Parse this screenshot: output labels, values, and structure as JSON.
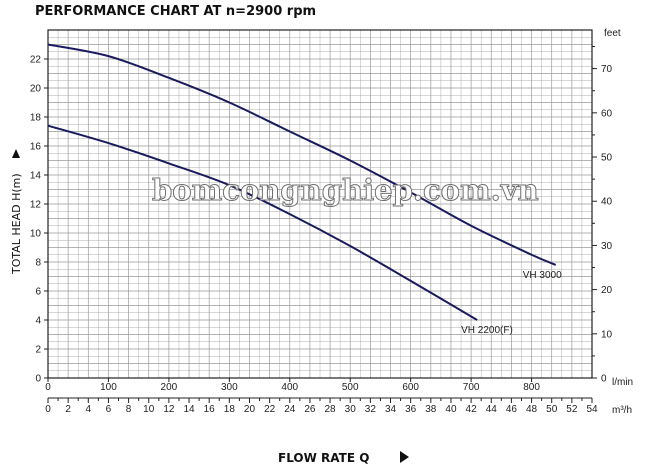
{
  "chart_data": {
    "type": "line",
    "title": "PERFORMANCE CHART AT n=2900 rpm",
    "xlabel": "FLOW RATE Q",
    "ylabel": "TOTAL HEAD H(m)",
    "x_unit_primary": "l/min",
    "x_unit_secondary": "m³/h",
    "y_unit_secondary": "feet",
    "xlim": [
      0,
      900
    ],
    "ylim": [
      0,
      24
    ],
    "x_ticks": [
      "0",
      "100",
      "200",
      "300",
      "400",
      "500",
      "600",
      "700",
      "800"
    ],
    "x2_ticks": [
      "0",
      "2",
      "4",
      "6",
      "8",
      "10",
      "12",
      "14",
      "16",
      "18",
      "20",
      "22",
      "24",
      "26",
      "28",
      "30",
      "32",
      "34",
      "36",
      "38",
      "40",
      "42",
      "44",
      "46",
      "48",
      "50",
      "52",
      "54"
    ],
    "y_ticks": [
      "0",
      "2",
      "4",
      "6",
      "8",
      "10",
      "12",
      "14",
      "16",
      "18",
      "20",
      "22"
    ],
    "y2_ticks": [
      "0",
      "10",
      "20",
      "30",
      "40",
      "50",
      "60",
      "70"
    ],
    "y2_unit_label": "feet",
    "grid": true,
    "series": [
      {
        "name": "VH 3000",
        "x": [
          0,
          100,
          200,
          300,
          400,
          500,
          600,
          700,
          800,
          840
        ],
        "y": [
          23.0,
          22.2,
          20.7,
          19.0,
          17.0,
          15.0,
          12.8,
          10.5,
          8.5,
          7.8
        ]
      },
      {
        "name": "VH 2200(F)",
        "x": [
          0,
          100,
          200,
          300,
          400,
          500,
          600,
          710
        ],
        "y": [
          17.4,
          16.2,
          14.8,
          13.3,
          11.3,
          9.1,
          6.7,
          4.0
        ]
      }
    ]
  },
  "watermark": "bomcongnghiep.com.vn",
  "colors": {
    "curve": "#1a1a5e",
    "grid": "#9a9a9a",
    "frame": "#222222"
  }
}
